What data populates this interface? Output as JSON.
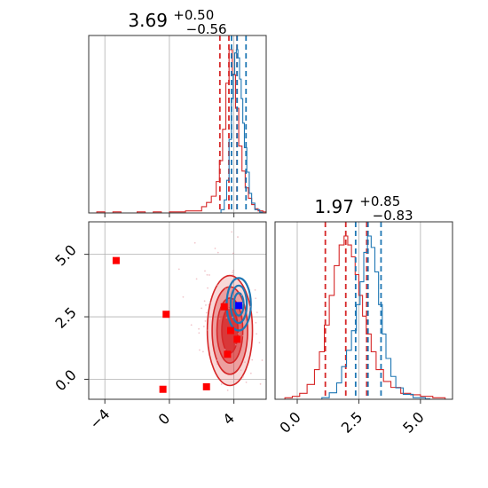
{
  "chart_data": [
    {
      "type": "histogram",
      "panel": "top-left marginal (parameter 1)",
      "title": {
        "value": "3.69",
        "upper": "+0.50",
        "lower": "−0.56"
      },
      "xlim": [
        -5,
        6
      ],
      "grid": true,
      "series": [
        {
          "color": "#d62728",
          "quantiles": [
            3.13,
            3.69,
            4.19
          ],
          "bins": [
            [
              -5,
              0
            ],
            [
              -4.5,
              0.005
            ],
            [
              -4,
              0
            ],
            [
              -3.5,
              0.005
            ],
            [
              -3,
              0
            ],
            [
              -2.5,
              0
            ],
            [
              -2,
              0.005
            ],
            [
              -1.5,
              0
            ],
            [
              -1,
              0.005
            ],
            [
              -0.5,
              0
            ],
            [
              0,
              0.005
            ],
            [
              0.5,
              0.005
            ],
            [
              1,
              0.01
            ],
            [
              1.5,
              0.01
            ],
            [
              2,
              0.03
            ],
            [
              2.3,
              0.05
            ],
            [
              2.6,
              0.08
            ],
            [
              2.9,
              0.15
            ],
            [
              3.1,
              0.25
            ],
            [
              3.3,
              0.4
            ],
            [
              3.5,
              0.62
            ],
            [
              3.7,
              0.78
            ],
            [
              3.9,
              0.66
            ],
            [
              4.1,
              0.5
            ],
            [
              4.3,
              0.32
            ],
            [
              4.5,
              0.2
            ],
            [
              4.7,
              0.12
            ],
            [
              4.9,
              0.07
            ],
            [
              5.1,
              0.04
            ],
            [
              5.3,
              0.02
            ],
            [
              5.5,
              0.01
            ],
            [
              5.8,
              0.005
            ]
          ]
        },
        {
          "color": "#1f77b4",
          "quantiles": [
            3.85,
            4.2,
            4.75
          ],
          "bins": [
            [
              3.2,
              0.02
            ],
            [
              3.4,
              0.08
            ],
            [
              3.55,
              0.2
            ],
            [
              3.7,
              0.45
            ],
            [
              3.85,
              0.7
            ],
            [
              3.95,
              0.85
            ],
            [
              4.05,
              0.98
            ],
            [
              4.15,
              1.0
            ],
            [
              4.25,
              0.95
            ],
            [
              4.35,
              0.82
            ],
            [
              4.45,
              0.7
            ],
            [
              4.55,
              0.55
            ],
            [
              4.65,
              0.4
            ],
            [
              4.8,
              0.25
            ],
            [
              4.95,
              0.12
            ],
            [
              5.1,
              0.06
            ],
            [
              5.3,
              0.02
            ],
            [
              5.6,
              0.005
            ]
          ]
        }
      ],
      "xticks": []
    },
    {
      "type": "contour",
      "panel": "bottom-left joint (parameter 1 vs parameter 2)",
      "xlim": [
        -5,
        6
      ],
      "ylim": [
        -0.8,
        6.3
      ],
      "xticks": [
        -4,
        0,
        4
      ],
      "yticks": [
        0.0,
        2.5,
        5.0
      ],
      "xtick_labels": [
        "−4",
        "0",
        "4"
      ],
      "ytick_labels": [
        "0.0",
        "2.5",
        "5.0"
      ],
      "grid": true,
      "red_contours": {
        "color": "#d62728",
        "center": [
          3.75,
          1.95
        ],
        "levels": [
          {
            "sx": 1.4,
            "sy": 2.2
          },
          {
            "sx": 1.1,
            "sy": 1.75
          },
          {
            "sx": 0.8,
            "sy": 1.3
          },
          {
            "sx": 0.5,
            "sy": 0.9
          }
        ]
      },
      "blue_contours": {
        "color": "#1f77b4",
        "center": [
          4.3,
          3.0
        ],
        "levels": [
          {
            "sx": 0.75,
            "sy": 1.05
          },
          {
            "sx": 0.5,
            "sy": 0.75
          },
          {
            "sx": 0.3,
            "sy": 0.45
          }
        ]
      },
      "red_squares": [
        [
          -3.3,
          4.75
        ],
        [
          -0.2,
          2.6
        ],
        [
          -0.4,
          -0.4
        ],
        [
          2.3,
          -0.3
        ],
        [
          3.8,
          1.95
        ],
        [
          3.6,
          1.0
        ],
        [
          3.4,
          2.9
        ],
        [
          4.2,
          1.6
        ]
      ],
      "blue_squares": [
        [
          4.3,
          2.95
        ]
      ]
    },
    {
      "type": "histogram",
      "panel": "bottom-right marginal (parameter 2)",
      "title": {
        "value": "1.97",
        "upper": "+0.85",
        "lower": "−0.83"
      },
      "xlim": [
        -0.9,
        6.3
      ],
      "xticks": [
        0.0,
        2.5,
        5.0
      ],
      "xtick_labels": [
        "0.0",
        "2.5",
        "5.0"
      ],
      "grid": true,
      "series": [
        {
          "color": "#d62728",
          "quantiles": [
            1.14,
            1.97,
            2.82
          ],
          "bins": [
            [
              -0.9,
              0
            ],
            [
              -0.5,
              0.005
            ],
            [
              -0.2,
              0.01
            ],
            [
              0.1,
              0.02
            ],
            [
              0.4,
              0.05
            ],
            [
              0.7,
              0.1
            ],
            [
              0.9,
              0.16
            ],
            [
              1.1,
              0.25
            ],
            [
              1.3,
              0.35
            ],
            [
              1.5,
              0.45
            ],
            [
              1.7,
              0.52
            ],
            [
              1.9,
              0.55
            ],
            [
              2.05,
              0.52
            ],
            [
              2.2,
              0.48
            ],
            [
              2.35,
              0.42
            ],
            [
              2.5,
              0.35
            ],
            [
              2.65,
              0.28
            ],
            [
              2.8,
              0.22
            ],
            [
              3.0,
              0.16
            ],
            [
              3.2,
              0.1
            ],
            [
              3.5,
              0.06
            ],
            [
              3.8,
              0.04
            ],
            [
              4.2,
              0.02
            ],
            [
              4.6,
              0.015
            ],
            [
              5.0,
              0.01
            ],
            [
              5.5,
              0.005
            ],
            [
              6.0,
              0
            ]
          ]
        },
        {
          "color": "#1f77b4",
          "quantiles": [
            2.37,
            2.87,
            3.4
          ],
          "bins": [
            [
              1.0,
              0.01
            ],
            [
              1.3,
              0.04
            ],
            [
              1.6,
              0.1
            ],
            [
              1.8,
              0.2
            ],
            [
              2.0,
              0.3
            ],
            [
              2.2,
              0.42
            ],
            [
              2.4,
              0.58
            ],
            [
              2.55,
              0.72
            ],
            [
              2.7,
              0.9
            ],
            [
              2.85,
              1.0
            ],
            [
              3.0,
              0.93
            ],
            [
              3.15,
              0.78
            ],
            [
              3.3,
              0.58
            ],
            [
              3.45,
              0.4
            ],
            [
              3.6,
              0.25
            ],
            [
              3.8,
              0.14
            ],
            [
              4.0,
              0.07
            ],
            [
              4.3,
              0.03
            ],
            [
              4.7,
              0.01
            ],
            [
              5.2,
              0.003
            ]
          ]
        }
      ]
    }
  ]
}
